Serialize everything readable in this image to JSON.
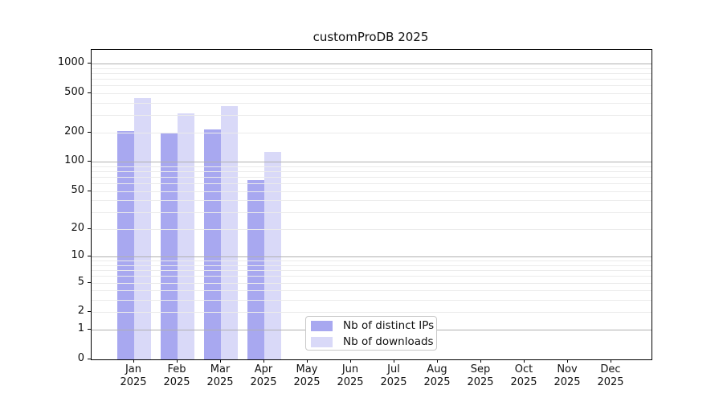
{
  "title": "customProDB 2025",
  "legend": {
    "items": [
      {
        "label": "Nb of distinct IPs",
        "color": "#a8a8f0"
      },
      {
        "label": "Nb of downloads",
        "color": "#d9d9f8"
      }
    ]
  },
  "chart_data": {
    "type": "bar",
    "title": "customProDB 2025",
    "categories": [
      "Jan",
      "Feb",
      "Mar",
      "Apr",
      "May",
      "Jun",
      "Jul",
      "Aug",
      "Sep",
      "Oct",
      "Nov",
      "Dec"
    ],
    "category_year": "2025",
    "series": [
      {
        "name": "Nb of distinct IPs",
        "color": "#a8a8f0",
        "values": [
          204,
          198,
          214,
          65,
          null,
          null,
          null,
          null,
          null,
          null,
          null,
          null
        ]
      },
      {
        "name": "Nb of downloads",
        "color": "#d9d9f8",
        "values": [
          447,
          312,
          369,
          126,
          null,
          null,
          null,
          null,
          null,
          null,
          null,
          null
        ]
      }
    ],
    "xlabel": "",
    "ylabel": "",
    "yscale": "log1p",
    "yticks": [
      0,
      1,
      2,
      5,
      10,
      20,
      50,
      100,
      200,
      500,
      1000
    ],
    "ylim": [
      0,
      1376
    ],
    "grid": "horizontal",
    "grid_major_at": [
      1,
      10,
      100,
      1000
    ],
    "legend_position": "lower center inside plot"
  },
  "colors": {
    "grid_minor": "#ebebeb",
    "grid_major": "#b0b0b0",
    "axis": "#000000",
    "background": "#ffffff"
  }
}
